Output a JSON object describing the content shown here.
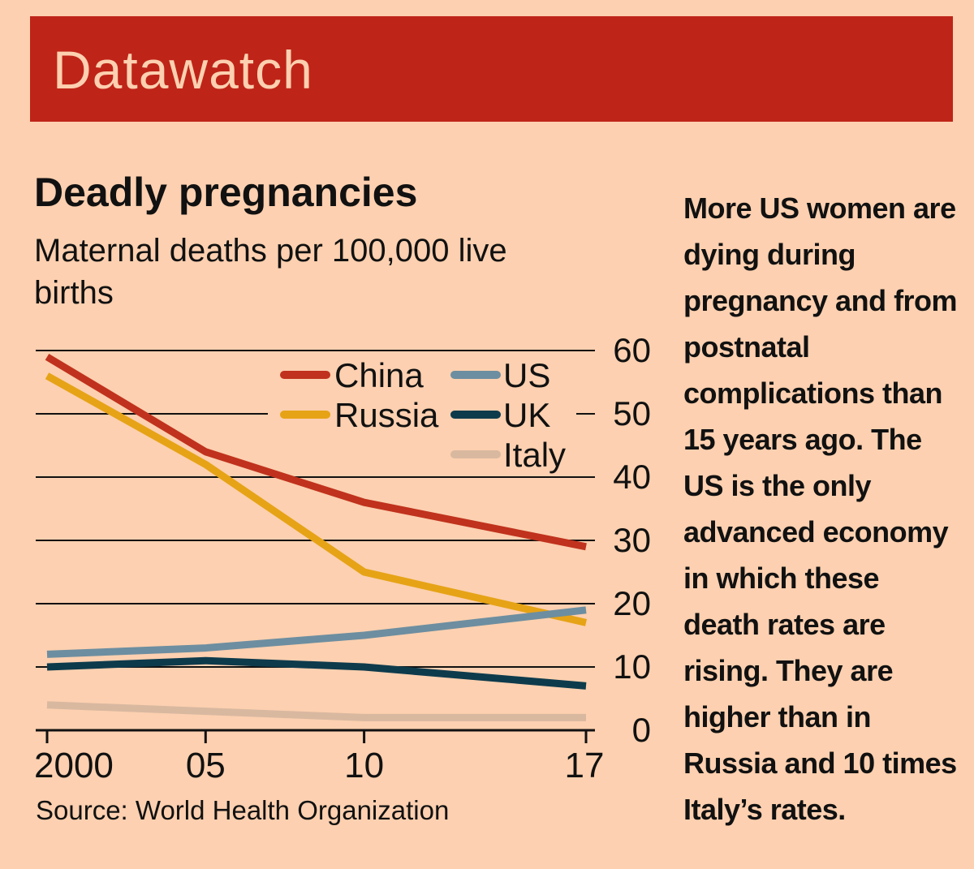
{
  "header": {
    "title": "Datawatch"
  },
  "side_text": "More US women are dying during pregnancy and from postnatal complications than 15 years ago. The US is the only advanced economy in which these death rates are rising. They are higher than in Russia and 10 times Italy’s rates.",
  "colors": {
    "background": "#fcd0b0",
    "banner": "#bf2418",
    "china": "#c0321d",
    "russia": "#e6a316",
    "us": "#6d8ea0",
    "uk": "#0e3b4c",
    "italy": "#d9b8a0"
  },
  "chart_data": {
    "type": "line",
    "title": "Deadly pregnancies",
    "subtitle": "Maternal deaths per 100,000 live births",
    "source": "Source: World Health Organization",
    "x": [
      2000,
      2005,
      2010,
      2017
    ],
    "x_tick_labels": [
      "2000",
      "05",
      "10",
      "17"
    ],
    "ylim": [
      0,
      60
    ],
    "y_ticks": [
      0,
      10,
      20,
      30,
      40,
      50,
      60
    ],
    "y_axis_side": "right",
    "grid": true,
    "legend_position": "top-right",
    "series": [
      {
        "name": "China",
        "values": [
          59,
          44,
          36,
          29
        ]
      },
      {
        "name": "Russia",
        "values": [
          56,
          42,
          25,
          17
        ]
      },
      {
        "name": "US",
        "values": [
          12,
          13,
          15,
          19
        ]
      },
      {
        "name": "UK",
        "values": [
          10,
          11,
          10,
          7
        ]
      },
      {
        "name": "Italy",
        "values": [
          4,
          3,
          2,
          2
        ]
      }
    ]
  }
}
